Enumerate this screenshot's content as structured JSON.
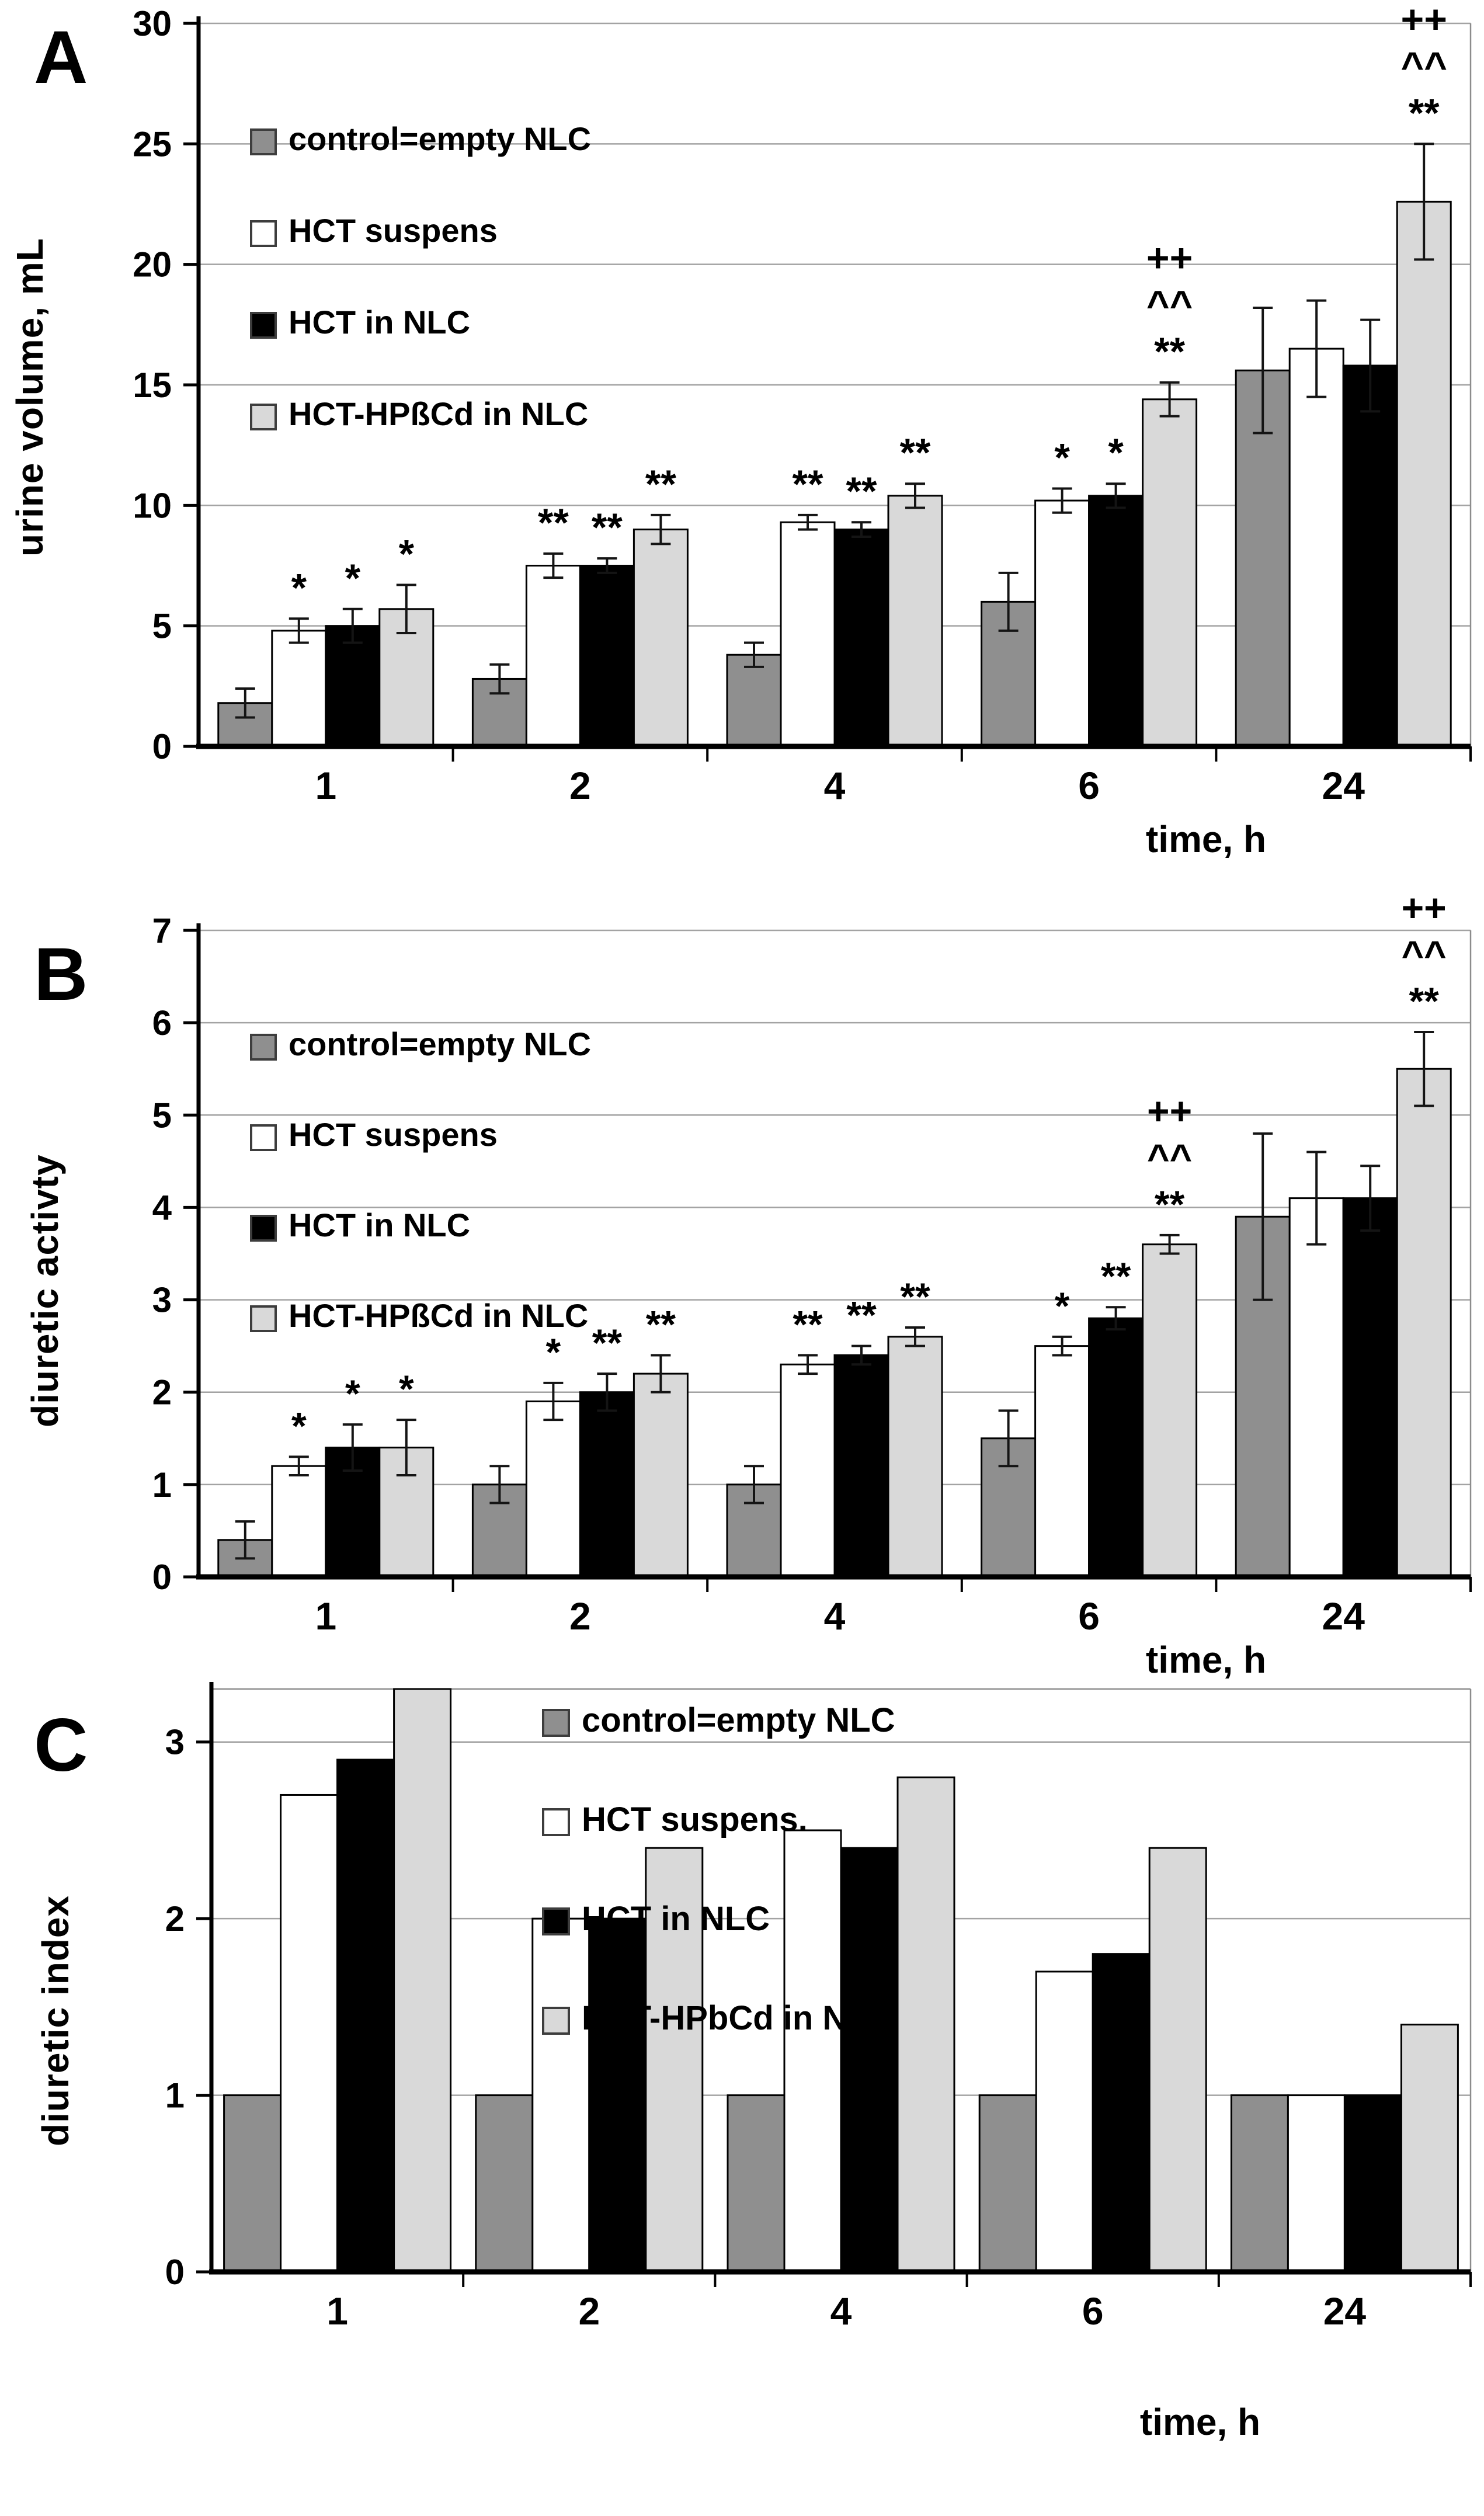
{
  "figure": {
    "background": "#ffffff",
    "panel_labels": [
      "A",
      "B",
      "C"
    ]
  },
  "chart_data": [
    {
      "type": "bar",
      "panel_label": "A",
      "title": "",
      "ylabel": "urine volume, mL",
      "xlabel": "time, h",
      "categories": [
        "1",
        "2",
        "4",
        "6",
        "24"
      ],
      "ylim": [
        0,
        30
      ],
      "ytick_step": 5,
      "grid": true,
      "legend_position": "upper-left-inside",
      "error_bars": true,
      "series": [
        {
          "name": "control=empty NLC",
          "color": "#8f8f8f",
          "values": [
            1.8,
            2.8,
            3.8,
            6.0,
            15.6
          ],
          "errors": [
            0.6,
            0.6,
            0.5,
            1.2,
            2.6
          ]
        },
        {
          "name": "HCT suspens",
          "color": "#ffffff",
          "values": [
            4.8,
            7.5,
            9.3,
            10.2,
            16.5
          ],
          "errors": [
            0.5,
            0.5,
            0.3,
            0.5,
            2.0
          ]
        },
        {
          "name": "HCT in NLC",
          "color": "#000000",
          "values": [
            5.0,
            7.5,
            9.0,
            10.4,
            15.8
          ],
          "errors": [
            0.7,
            0.3,
            0.3,
            0.5,
            1.9
          ]
        },
        {
          "name": "HCT-HPßCd in NLC",
          "color": "#d9d9d9",
          "values": [
            5.7,
            9.0,
            10.4,
            14.4,
            22.6
          ],
          "errors": [
            1.0,
            0.6,
            0.5,
            0.7,
            2.4
          ]
        }
      ],
      "annotations": [
        [
          "",
          "*",
          "*",
          "*"
        ],
        [
          "",
          "**",
          "**",
          "**"
        ],
        [
          "",
          "**",
          "**",
          "**"
        ],
        [
          "",
          "*",
          "*",
          "++\n^^\n**"
        ],
        [
          "",
          "",
          "",
          "++\n^^\n**"
        ]
      ]
    },
    {
      "type": "bar",
      "panel_label": "B",
      "title": "",
      "ylabel": "diuretic activty",
      "xlabel": "time, h",
      "categories": [
        "1",
        "2",
        "4",
        "6",
        "24"
      ],
      "ylim": [
        0,
        7
      ],
      "ytick_step": 1,
      "grid": true,
      "legend_position": "upper-left-inside",
      "error_bars": true,
      "series": [
        {
          "name": "control=empty NLC",
          "color": "#8f8f8f",
          "values": [
            0.4,
            1.0,
            1.0,
            1.5,
            3.9
          ],
          "errors": [
            0.2,
            0.2,
            0.2,
            0.3,
            0.9
          ]
        },
        {
          "name": "HCT suspens",
          "color": "#ffffff",
          "values": [
            1.2,
            1.9,
            2.3,
            2.5,
            4.1
          ],
          "errors": [
            0.1,
            0.2,
            0.1,
            0.1,
            0.5
          ]
        },
        {
          "name": "HCT in NLC",
          "color": "#000000",
          "values": [
            1.4,
            2.0,
            2.4,
            2.8,
            4.1
          ],
          "errors": [
            0.25,
            0.2,
            0.1,
            0.12,
            0.35
          ]
        },
        {
          "name": "HCT-HPßCd in NLC",
          "color": "#d9d9d9",
          "values": [
            1.4,
            2.2,
            2.6,
            3.6,
            5.5
          ],
          "errors": [
            0.3,
            0.2,
            0.1,
            0.1,
            0.4
          ]
        }
      ],
      "annotations": [
        [
          "",
          "*",
          "*",
          "*"
        ],
        [
          "",
          "*",
          "**",
          "**"
        ],
        [
          "",
          "**",
          "**",
          "**"
        ],
        [
          "",
          "*",
          "**",
          "++\n^^\n**"
        ],
        [
          "",
          "",
          "",
          "++\n^^\n**"
        ]
      ]
    },
    {
      "type": "bar",
      "panel_label": "C",
      "title": "",
      "ylabel": "diuretic index",
      "xlabel": "time, h",
      "categories": [
        "1",
        "2",
        "4",
        "6",
        "24"
      ],
      "ylim": [
        0,
        3.3
      ],
      "ytick_step": 1,
      "ytick_max_label": 3,
      "grid": true,
      "legend_position": "upper-center-inside",
      "error_bars": false,
      "series": [
        {
          "name": "control=empty NLC",
          "color": "#8f8f8f",
          "values": [
            1.0,
            1.0,
            1.0,
            1.0,
            1.0
          ]
        },
        {
          "name": "HCT suspens.",
          "color": "#ffffff",
          "values": [
            2.7,
            2.0,
            2.5,
            1.7,
            1.0
          ]
        },
        {
          "name": "HCT in NLC",
          "color": "#000000",
          "values": [
            2.9,
            2.0,
            2.4,
            1.8,
            1.0
          ]
        },
        {
          "name": "HCT-HPbCd in NLC",
          "color": "#d9d9d9",
          "values": [
            3.3,
            2.4,
            2.8,
            2.4,
            1.4
          ]
        }
      ],
      "annotations": [
        [
          "",
          "",
          "",
          ""
        ],
        [
          "",
          "",
          "",
          ""
        ],
        [
          "",
          "",
          "",
          ""
        ],
        [
          "",
          "",
          "",
          ""
        ],
        [
          "",
          "",
          "",
          ""
        ]
      ]
    }
  ]
}
